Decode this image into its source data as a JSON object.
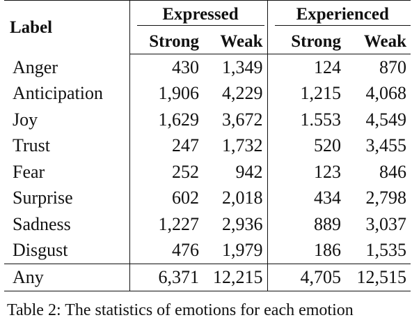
{
  "table": {
    "label_header": "Label",
    "groups": [
      "Expressed",
      "Experienced"
    ],
    "subheaders": [
      "Strong",
      "Weak",
      "Strong",
      "Weak"
    ],
    "rows": [
      {
        "label": "Anger",
        "values": [
          "430",
          "1,349",
          "124",
          "870"
        ]
      },
      {
        "label": "Anticipation",
        "values": [
          "1,906",
          "4,229",
          "1,215",
          "4,068"
        ]
      },
      {
        "label": "Joy",
        "values": [
          "1,629",
          "3,672",
          "1.553",
          "4,549"
        ]
      },
      {
        "label": "Trust",
        "values": [
          "247",
          "1,732",
          "520",
          "3,455"
        ]
      },
      {
        "label": "Fear",
        "values": [
          "252",
          "942",
          "123",
          "846"
        ]
      },
      {
        "label": "Surprise",
        "values": [
          "602",
          "2,018",
          "434",
          "2,798"
        ]
      },
      {
        "label": "Sadness",
        "values": [
          "1,227",
          "2,936",
          "889",
          "3,037"
        ]
      },
      {
        "label": "Disgust",
        "values": [
          "476",
          "1,979",
          "186",
          "1,535"
        ]
      }
    ],
    "total": {
      "label": "Any",
      "values": [
        "6,371",
        "12,215",
        "4,705",
        "12,515"
      ]
    }
  },
  "caption": "Table 2: The statistics of emotions for each emotion"
}
